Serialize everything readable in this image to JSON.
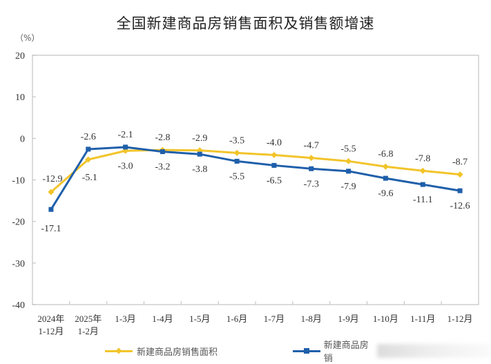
{
  "chart_data": {
    "type": "line",
    "title": "全国新建商品房销售面积及销售额增速",
    "ylabel": "（%）",
    "xlabel": "",
    "ylim": [
      -40,
      20
    ],
    "yticks": [
      20,
      10,
      0,
      -10,
      -20,
      -30,
      -40
    ],
    "grid": false,
    "legend_position": "bottom",
    "categories": [
      [
        "2024年",
        "1-12月"
      ],
      [
        "2025年",
        "1-2月"
      ],
      [
        "1-3月"
      ],
      [
        "1-4月"
      ],
      [
        "1-5月"
      ],
      [
        "1-6月"
      ],
      [
        "1-7月"
      ],
      [
        "1-8月"
      ],
      [
        "1-9月"
      ],
      [
        "1-10月"
      ],
      [
        "1-11月"
      ],
      [
        "1-12月"
      ]
    ],
    "series": [
      {
        "name": "新建商品房销售面积",
        "color": "#F2C42A",
        "marker": "diamond",
        "values": [
          -12.9,
          -5.1,
          -3.0,
          -2.8,
          -2.9,
          -3.5,
          -4.0,
          -4.7,
          -5.5,
          -6.8,
          -7.8,
          -8.7
        ],
        "label_position": [
          "above-left",
          "below-right",
          "below",
          "above",
          "above",
          "above",
          "above",
          "above",
          "above",
          "above",
          "above",
          "above"
        ]
      },
      {
        "name": "新建商品房销",
        "name_obscured": true,
        "color": "#1F5FAA",
        "marker": "square",
        "values": [
          -17.1,
          -2.6,
          -2.1,
          -3.2,
          -3.8,
          -5.5,
          -6.5,
          -7.3,
          -7.9,
          -9.6,
          -11.1,
          -12.6
        ],
        "label_position": [
          "below",
          "above",
          "above",
          "below",
          "below",
          "below",
          "below",
          "below",
          "below",
          "below",
          "below",
          "below"
        ]
      }
    ]
  },
  "legend": {
    "items": [
      {
        "label": "新建商品房销售面积"
      },
      {
        "label": "新建商品房销"
      }
    ]
  }
}
